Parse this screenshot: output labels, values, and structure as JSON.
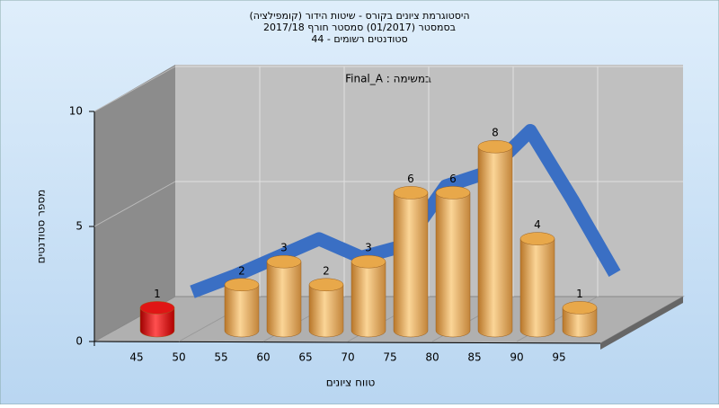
{
  "chart_data": {
    "type": "bar3d",
    "title": [
      "היסטוגרמת ציונים בקורס - שיטות הידור (קומפילציה)",
      "בסמסטר (01/2017) סמסטר חורף 2017/18",
      "סטודנטים רשומים - 44"
    ],
    "annotation": "במשימה : Final_A",
    "x_label": "טווח ציונים",
    "y_label": "מספר סטודנטים",
    "categories": [
      "45",
      "50",
      "55",
      "60",
      "65",
      "70",
      "75",
      "80",
      "85",
      "90",
      "95"
    ],
    "values": [
      1,
      0,
      2,
      3,
      2,
      3,
      6,
      6,
      8,
      4,
      1
    ],
    "colors": [
      "#e01515",
      "#e8a84a",
      "#e8a84a",
      "#e8a84a",
      "#e8a84a",
      "#e8a84a",
      "#e8a84a",
      "#e8a84a",
      "#e8a84a",
      "#e8a84a",
      "#e8a84a"
    ],
    "trend": {
      "color": "#3a6fc4",
      "values": [
        0.4,
        1.1,
        1.9,
        2.7,
        1.9,
        2.4,
        5.0,
        5.6,
        7.4,
        4.4,
        1.2
      ]
    },
    "ylim": [
      0,
      10
    ],
    "yticks": [
      0,
      5,
      10
    ],
    "grid": true
  }
}
